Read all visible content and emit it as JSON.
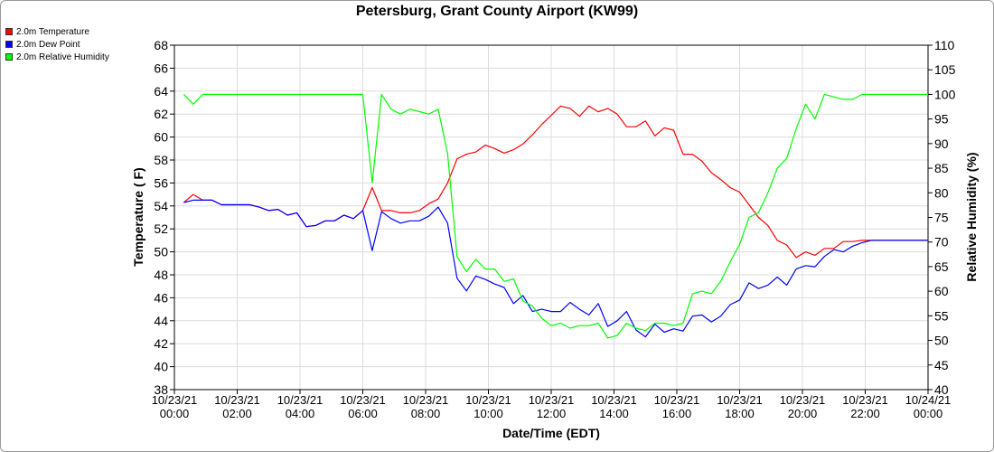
{
  "chart_data": {
    "type": "line",
    "title": "Petersburg, Grant County Airport (KW99)",
    "xlabel": "Date/Time (EDT)",
    "ylabel": "Temperature ( F)",
    "y2label": "Relative Humidity (%)",
    "ylim": [
      38,
      68
    ],
    "y2lim": [
      40,
      110
    ],
    "grid": true,
    "legend_position": "top-left",
    "x_ticks": [
      {
        "hour": 0,
        "date": "10/23/21",
        "time": "00:00"
      },
      {
        "hour": 2,
        "date": "10/23/21",
        "time": "02:00"
      },
      {
        "hour": 4,
        "date": "10/23/21",
        "time": "04:00"
      },
      {
        "hour": 6,
        "date": "10/23/21",
        "time": "06:00"
      },
      {
        "hour": 8,
        "date": "10/23/21",
        "time": "08:00"
      },
      {
        "hour": 10,
        "date": "10/23/21",
        "time": "10:00"
      },
      {
        "hour": 12,
        "date": "10/23/21",
        "time": "12:00"
      },
      {
        "hour": 14,
        "date": "10/23/21",
        "time": "14:00"
      },
      {
        "hour": 16,
        "date": "10/23/21",
        "time": "16:00"
      },
      {
        "hour": 18,
        "date": "10/23/21",
        "time": "18:00"
      },
      {
        "hour": 20,
        "date": "10/23/21",
        "time": "20:00"
      },
      {
        "hour": 22,
        "date": "10/23/21",
        "time": "22:00"
      },
      {
        "hour": 24,
        "date": "10/24/21",
        "time": "00:00"
      }
    ],
    "y_ticks": [
      38,
      40,
      42,
      44,
      46,
      48,
      50,
      52,
      54,
      56,
      58,
      60,
      62,
      64,
      66,
      68
    ],
    "y2_ticks": [
      40,
      45,
      50,
      55,
      60,
      65,
      70,
      75,
      80,
      85,
      90,
      95,
      100,
      105,
      110
    ],
    "series": [
      {
        "name": "2.0m Temperature",
        "color": "#ff0000",
        "axis": "left",
        "x": [
          0.3,
          0.6,
          0.9,
          1.2,
          1.5,
          1.8,
          2.1,
          2.4,
          2.7,
          3.0,
          3.3,
          3.6,
          3.9,
          4.2,
          4.5,
          4.8,
          5.1,
          5.4,
          5.7,
          6.0,
          6.3,
          6.6,
          6.9,
          7.2,
          7.5,
          7.8,
          8.1,
          8.4,
          8.7,
          9.0,
          9.3,
          9.6,
          9.9,
          10.2,
          10.5,
          10.8,
          11.1,
          11.4,
          11.7,
          12.0,
          12.3,
          12.6,
          12.9,
          13.2,
          13.5,
          13.8,
          14.1,
          14.4,
          14.7,
          15.0,
          15.3,
          15.6,
          15.9,
          16.2,
          16.5,
          16.8,
          17.1,
          17.4,
          17.7,
          18.0,
          18.3,
          18.6,
          18.9,
          19.2,
          19.5,
          19.8,
          20.1,
          20.4,
          20.7,
          21.0,
          21.3,
          21.6,
          21.9,
          22.2,
          22.5,
          22.8,
          23.1,
          23.4,
          23.7,
          24.0
        ],
        "values": [
          54.3,
          55.0,
          54.5,
          54.5,
          54.1,
          54.1,
          54.1,
          54.1,
          53.9,
          53.6,
          53.7,
          53.2,
          53.4,
          52.2,
          52.3,
          52.7,
          52.7,
          53.2,
          52.9,
          53.6,
          55.6,
          53.6,
          53.6,
          53.4,
          53.4,
          53.6,
          54.2,
          54.6,
          56.0,
          58.1,
          58.5,
          58.7,
          59.3,
          59.0,
          58.6,
          58.9,
          59.4,
          60.2,
          61.1,
          61.9,
          62.7,
          62.5,
          61.8,
          62.7,
          62.2,
          62.5,
          62.0,
          60.9,
          60.9,
          61.4,
          60.1,
          60.8,
          60.6,
          58.5,
          58.5,
          57.9,
          56.9,
          56.3,
          55.6,
          55.2,
          54.1,
          53.0,
          52.3,
          51.0,
          50.6,
          49.5,
          50.0,
          49.7,
          50.3,
          50.3,
          50.9,
          50.9,
          51.0,
          51.0,
          51.0,
          51.0,
          51.0,
          51.0,
          51.0,
          51.0
        ]
      },
      {
        "name": "2.0m Dew Point",
        "color": "#0000ff",
        "axis": "left",
        "x": [
          0.3,
          0.6,
          0.9,
          1.2,
          1.5,
          1.8,
          2.1,
          2.4,
          2.7,
          3.0,
          3.3,
          3.6,
          3.9,
          4.2,
          4.5,
          4.8,
          5.1,
          5.4,
          5.7,
          6.0,
          6.3,
          6.6,
          6.9,
          7.2,
          7.5,
          7.8,
          8.1,
          8.4,
          8.7,
          9.0,
          9.3,
          9.6,
          9.9,
          10.2,
          10.5,
          10.8,
          11.1,
          11.4,
          11.7,
          12.0,
          12.3,
          12.6,
          12.9,
          13.2,
          13.5,
          13.8,
          14.1,
          14.4,
          14.7,
          15.0,
          15.3,
          15.6,
          15.9,
          16.2,
          16.5,
          16.8,
          17.1,
          17.4,
          17.7,
          18.0,
          18.3,
          18.6,
          18.9,
          19.2,
          19.5,
          19.8,
          20.1,
          20.4,
          20.7,
          21.0,
          21.3,
          21.6,
          21.9,
          22.2,
          22.5,
          22.8,
          23.1,
          23.4,
          23.7,
          24.0
        ],
        "values": [
          54.3,
          54.5,
          54.5,
          54.5,
          54.1,
          54.1,
          54.1,
          54.1,
          53.9,
          53.6,
          53.7,
          53.2,
          53.4,
          52.2,
          52.3,
          52.7,
          52.7,
          53.2,
          52.9,
          53.6,
          50.1,
          53.5,
          52.9,
          52.5,
          52.7,
          52.7,
          53.1,
          53.9,
          52.5,
          47.7,
          46.6,
          47.9,
          47.6,
          47.2,
          46.9,
          45.5,
          46.2,
          44.8,
          45.0,
          44.8,
          44.8,
          45.6,
          45.0,
          44.5,
          45.5,
          43.5,
          44.0,
          44.8,
          43.2,
          42.6,
          43.7,
          43.0,
          43.3,
          43.1,
          44.4,
          44.5,
          43.9,
          44.4,
          45.4,
          45.8,
          47.3,
          46.8,
          47.1,
          47.8,
          47.1,
          48.5,
          48.8,
          48.7,
          49.6,
          50.2,
          50.0,
          50.5,
          50.8,
          51.0,
          51.0,
          51.0,
          51.0,
          51.0,
          51.0,
          51.0
        ]
      },
      {
        "name": "2.0m Relative Humidity",
        "color": "#00ff00",
        "axis": "right",
        "x": [
          0.3,
          0.6,
          0.9,
          1.2,
          1.5,
          1.8,
          2.1,
          2.4,
          2.7,
          3.0,
          3.3,
          3.6,
          3.9,
          4.2,
          4.5,
          4.8,
          5.1,
          5.4,
          5.7,
          6.0,
          6.3,
          6.6,
          6.9,
          7.2,
          7.5,
          7.8,
          8.1,
          8.4,
          8.7,
          9.0,
          9.3,
          9.6,
          9.9,
          10.2,
          10.5,
          10.8,
          11.1,
          11.4,
          11.7,
          12.0,
          12.3,
          12.6,
          12.9,
          13.2,
          13.5,
          13.8,
          14.1,
          14.4,
          14.7,
          15.0,
          15.3,
          15.6,
          15.9,
          16.2,
          16.5,
          16.8,
          17.1,
          17.4,
          17.7,
          18.0,
          18.3,
          18.6,
          18.9,
          19.2,
          19.5,
          19.8,
          20.1,
          20.4,
          20.7,
          21.0,
          21.3,
          21.6,
          21.9,
          22.2,
          22.5,
          22.8,
          23.1,
          23.4,
          23.7,
          24.0
        ],
        "values": [
          100,
          98,
          100,
          100,
          100,
          100,
          100,
          100,
          100,
          100,
          100,
          100,
          100,
          100,
          100,
          100,
          100,
          100,
          100,
          100,
          82,
          100,
          97,
          96,
          97,
          96.5,
          96,
          97,
          88,
          67,
          64,
          66.5,
          64.5,
          64.5,
          62,
          62.5,
          58,
          57,
          54.5,
          53,
          53.5,
          52.5,
          53,
          53,
          53.5,
          50.5,
          51,
          53.5,
          52.5,
          52,
          53.5,
          53.5,
          53,
          53.5,
          59.5,
          60,
          59.5,
          62,
          66,
          69.5,
          75,
          76,
          80,
          85,
          87,
          93,
          98,
          95,
          100,
          99.5,
          99,
          99,
          100,
          100,
          100,
          100,
          100,
          100,
          100,
          100
        ]
      }
    ]
  }
}
